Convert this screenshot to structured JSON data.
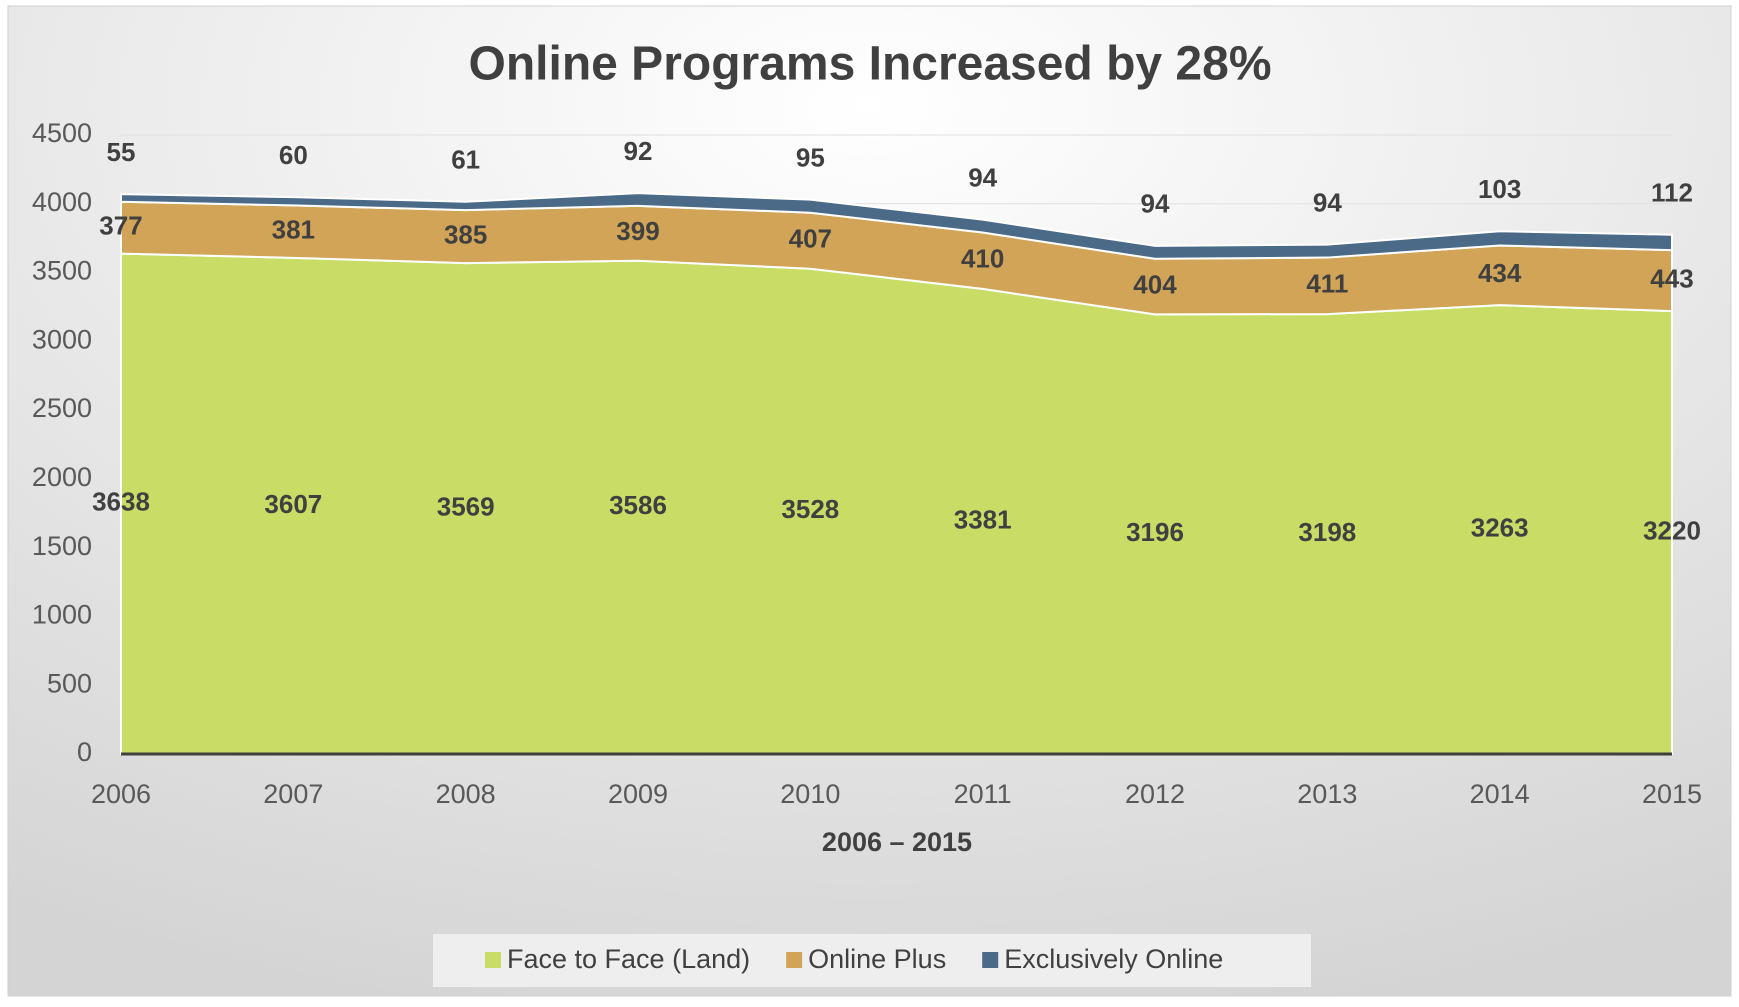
{
  "chart_data": {
    "type": "stacked_area",
    "title": "Online Programs Increased by 28%",
    "x_label": "2006 – 2015",
    "categories": [
      "2006",
      "2007",
      "2008",
      "2009",
      "2010",
      "2011",
      "2012",
      "2013",
      "2014",
      "2015"
    ],
    "series": [
      {
        "name": "Face to Face (Land)",
        "color": "#c9dc66",
        "values": [
          3638,
          3607,
          3569,
          3586,
          3528,
          3381,
          3196,
          3198,
          3263,
          3220
        ]
      },
      {
        "name": "Online Plus",
        "color": "#d2a457",
        "values": [
          377,
          381,
          385,
          399,
          407,
          410,
          404,
          411,
          434,
          443
        ]
      },
      {
        "name": "Exclusively Online",
        "color": "#4a6a88",
        "values": [
          55,
          60,
          61,
          92,
          95,
          94,
          94,
          94,
          103,
          112
        ]
      }
    ],
    "ylim": [
      0,
      4500
    ],
    "yticks": [
      0,
      500,
      1000,
      1500,
      2000,
      2500,
      3000,
      3500,
      4000,
      4500
    ],
    "grid": true,
    "legend": "bottom"
  }
}
